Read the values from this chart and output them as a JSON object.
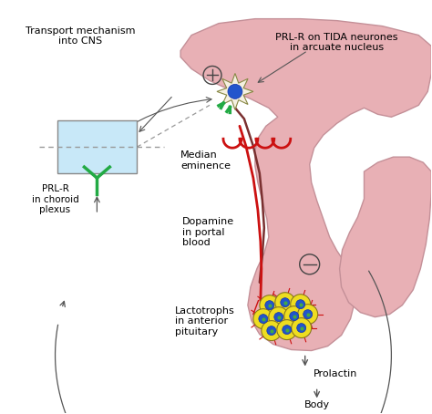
{
  "bg_color": "#ffffff",
  "pituitary_color": "#e8b0b5",
  "pituitary_edge": "#c49098",
  "axon_color": "#7a3030",
  "coil_color": "#cc1111",
  "receptor_color": "#22aa44",
  "box_fill": "#c8e8f8",
  "box_outline": "#aaaaaa",
  "arrow_color": "#555555",
  "cell_yellow": "#eedd20",
  "cell_green": "#228833",
  "cell_nucleus": "#2255cc",
  "texts": {
    "transport": "Transport mechanism\ninto CNS",
    "prl_r_choroid": "PRL-R\nin choroid\nplexus",
    "prl_r_tida": "PRL-R on TIDA neurones\nin arcuate nucleus",
    "median_eminence": "Median\neminence",
    "dopamine": "Dopamine\nin portal\nblood",
    "lactotrophs": "Lactotrophs\nin anterior\npituitary",
    "prolactin": "Prolactin",
    "body": "Body"
  },
  "fontsize": 8.0,
  "fontsize_small": 7.5
}
